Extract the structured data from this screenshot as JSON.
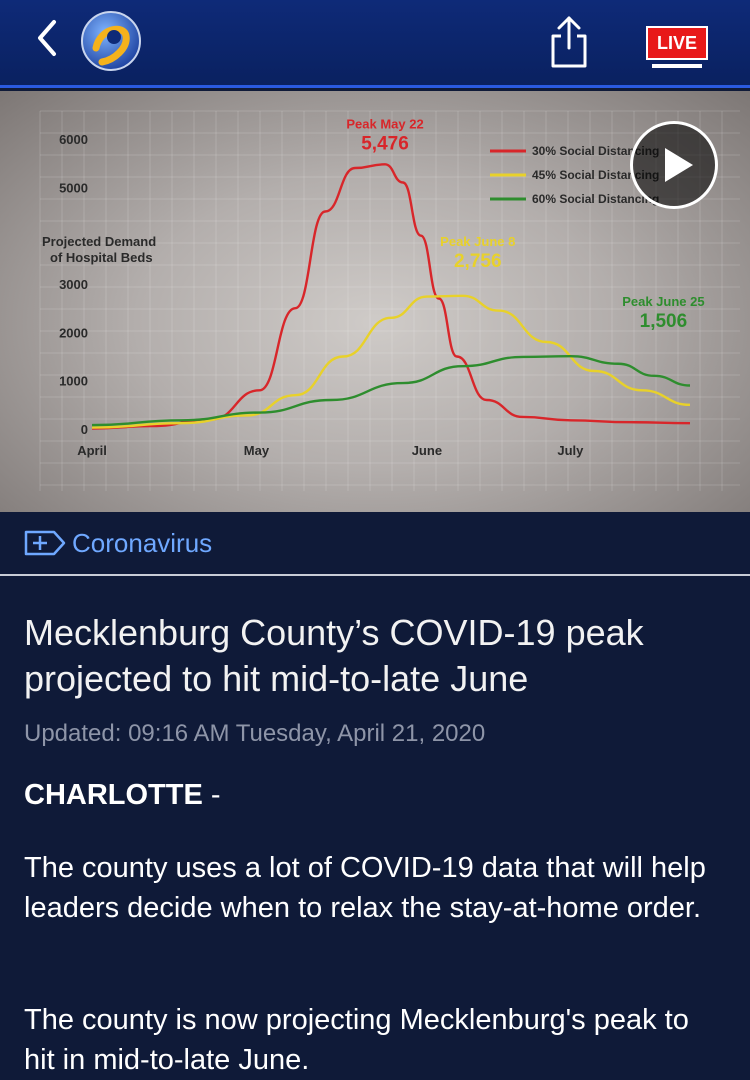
{
  "header": {
    "back_icon": "chevron-left-icon",
    "logo_icon": "channel-9-logo-icon",
    "share_icon": "share-icon",
    "live_label": "LIVE",
    "colors": {
      "bar": "#0e2a78",
      "live": "#e81919"
    }
  },
  "video": {
    "play_icon": "play-icon",
    "chart_data": {
      "type": "line",
      "title": "",
      "ylabel": "Projected Demand of Hospital Beds",
      "xlabel": "",
      "x_ticks": [
        "April",
        "May",
        "June",
        "July"
      ],
      "y_ticks": [
        "0",
        "1000",
        "2000",
        "3000",
        "5000",
        "6000"
      ],
      "ylim": [
        0,
        6000
      ],
      "legend_position": "top-right",
      "series": [
        {
          "name": "30% Social Distancing",
          "color": "#d8262a",
          "x": [
            0,
            10,
            20,
            28,
            34,
            39,
            44,
            49,
            52,
            55,
            58,
            61,
            66,
            72,
            80,
            90,
            100
          ],
          "y": [
            10,
            60,
            200,
            800,
            2500,
            4500,
            5400,
            5476,
            5100,
            4000,
            2700,
            1500,
            600,
            250,
            180,
            140,
            120
          ],
          "peak_label": "Peak May 22",
          "peak_value": "5,476"
        },
        {
          "name": "45% Social Distancing",
          "color": "#e8d12a",
          "x": [
            0,
            15,
            26,
            34,
            42,
            50,
            56,
            62,
            68,
            76,
            84,
            92,
            100
          ],
          "y": [
            30,
            120,
            280,
            700,
            1500,
            2300,
            2740,
            2756,
            2450,
            1800,
            1200,
            800,
            500
          ],
          "peak_label": "Peak June 8",
          "peak_value": "2,756"
        },
        {
          "name": "60% Social Distancing",
          "color": "#2e8d2e",
          "x": [
            0,
            15,
            28,
            40,
            52,
            62,
            72,
            80,
            88,
            94,
            100
          ],
          "y": [
            80,
            180,
            340,
            600,
            950,
            1300,
            1490,
            1506,
            1350,
            1100,
            900
          ],
          "peak_label": "Peak June 25",
          "peak_value": "1,506"
        }
      ]
    }
  },
  "category": {
    "icon": "plus-tag-icon",
    "label": "Coronavirus"
  },
  "article": {
    "headline": "Mecklenburg County’s COVID-19 peak projected to hit mid-to-late June",
    "updated": "Updated: 09:16 AM Tuesday, April 21, 2020",
    "dateline": "CHARLOTTE",
    "dateline_sep": " -",
    "paragraphs": [
      "The county uses a lot of COVID-19 data that will help leaders decide when to relax the stay-at-home order.",
      "The county is now projecting Mecklenburg's peak to hit in mid-to-late June."
    ]
  }
}
